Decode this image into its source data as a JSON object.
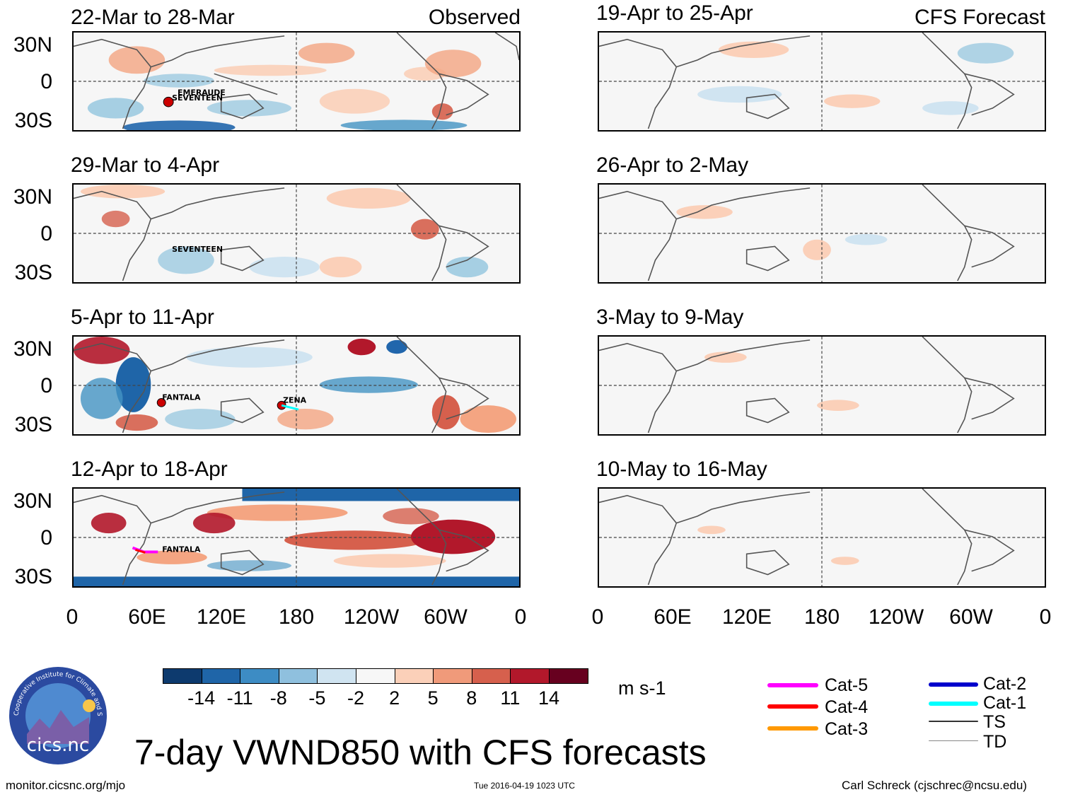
{
  "figure": {
    "title": "7-day VWND850 with CFS forecasts",
    "footer_left": "monitor.cicsnc.org/mjo",
    "footer_center": "Tue 2016-04-19 1023 UTC",
    "footer_right": "Carl Schreck (cjschrec@ncsu.edu)",
    "logo_text": "cics.nc",
    "logo_ring_text": "Cooperative Institute for Climate and Satellites"
  },
  "columns": {
    "observed_tag": "Observed",
    "forecast_tag": "CFS Forecast"
  },
  "panels": {
    "observed": [
      {
        "period": "22-Mar to 28-Mar",
        "storms": [
          "EMERAUDE",
          "SEVENTEEN"
        ]
      },
      {
        "period": "29-Mar to 4-Apr",
        "storms": [
          "SEVENTEEN"
        ]
      },
      {
        "period": "5-Apr to 11-Apr",
        "storms": [
          "FANTALA",
          "ZENA"
        ]
      },
      {
        "period": "12-Apr to 18-Apr",
        "storms": [
          "FANTALA"
        ]
      }
    ],
    "forecast": [
      {
        "period": "19-Apr to 25-Apr"
      },
      {
        "period": "26-Apr to 2-May"
      },
      {
        "period": "3-May to 9-May"
      },
      {
        "period": "10-May to 16-May"
      }
    ]
  },
  "axes": {
    "lat_labels": [
      "30N",
      "0",
      "30S"
    ],
    "lon_labels": [
      "0",
      "60E",
      "120E",
      "180",
      "120W",
      "60W",
      "0"
    ]
  },
  "colorbar": {
    "units": "m s-1",
    "labels": [
      "-14",
      "-11",
      "-8",
      "-5",
      "-2",
      "2",
      "5",
      "8",
      "11",
      "14"
    ],
    "colors": [
      "#0d3a6e",
      "#1f65a8",
      "#3d8cc4",
      "#8fc0de",
      "#d0e4f1",
      "#f7f7f7",
      "#fbd0b9",
      "#f09a7a",
      "#d6604d",
      "#b2182b",
      "#67001f"
    ]
  },
  "track_legend": [
    {
      "label": "Cat-5",
      "color": "#ff00ff"
    },
    {
      "label": "Cat-4",
      "color": "#ff0000"
    },
    {
      "label": "Cat-3",
      "color": "#ff9900"
    },
    {
      "label": "Cat-2",
      "color": "#0000cc"
    },
    {
      "label": "Cat-1",
      "color": "#00ffff"
    },
    {
      "label": "TS",
      "color": "#333333"
    },
    {
      "label": "TD",
      "color": "#888888"
    }
  ]
}
